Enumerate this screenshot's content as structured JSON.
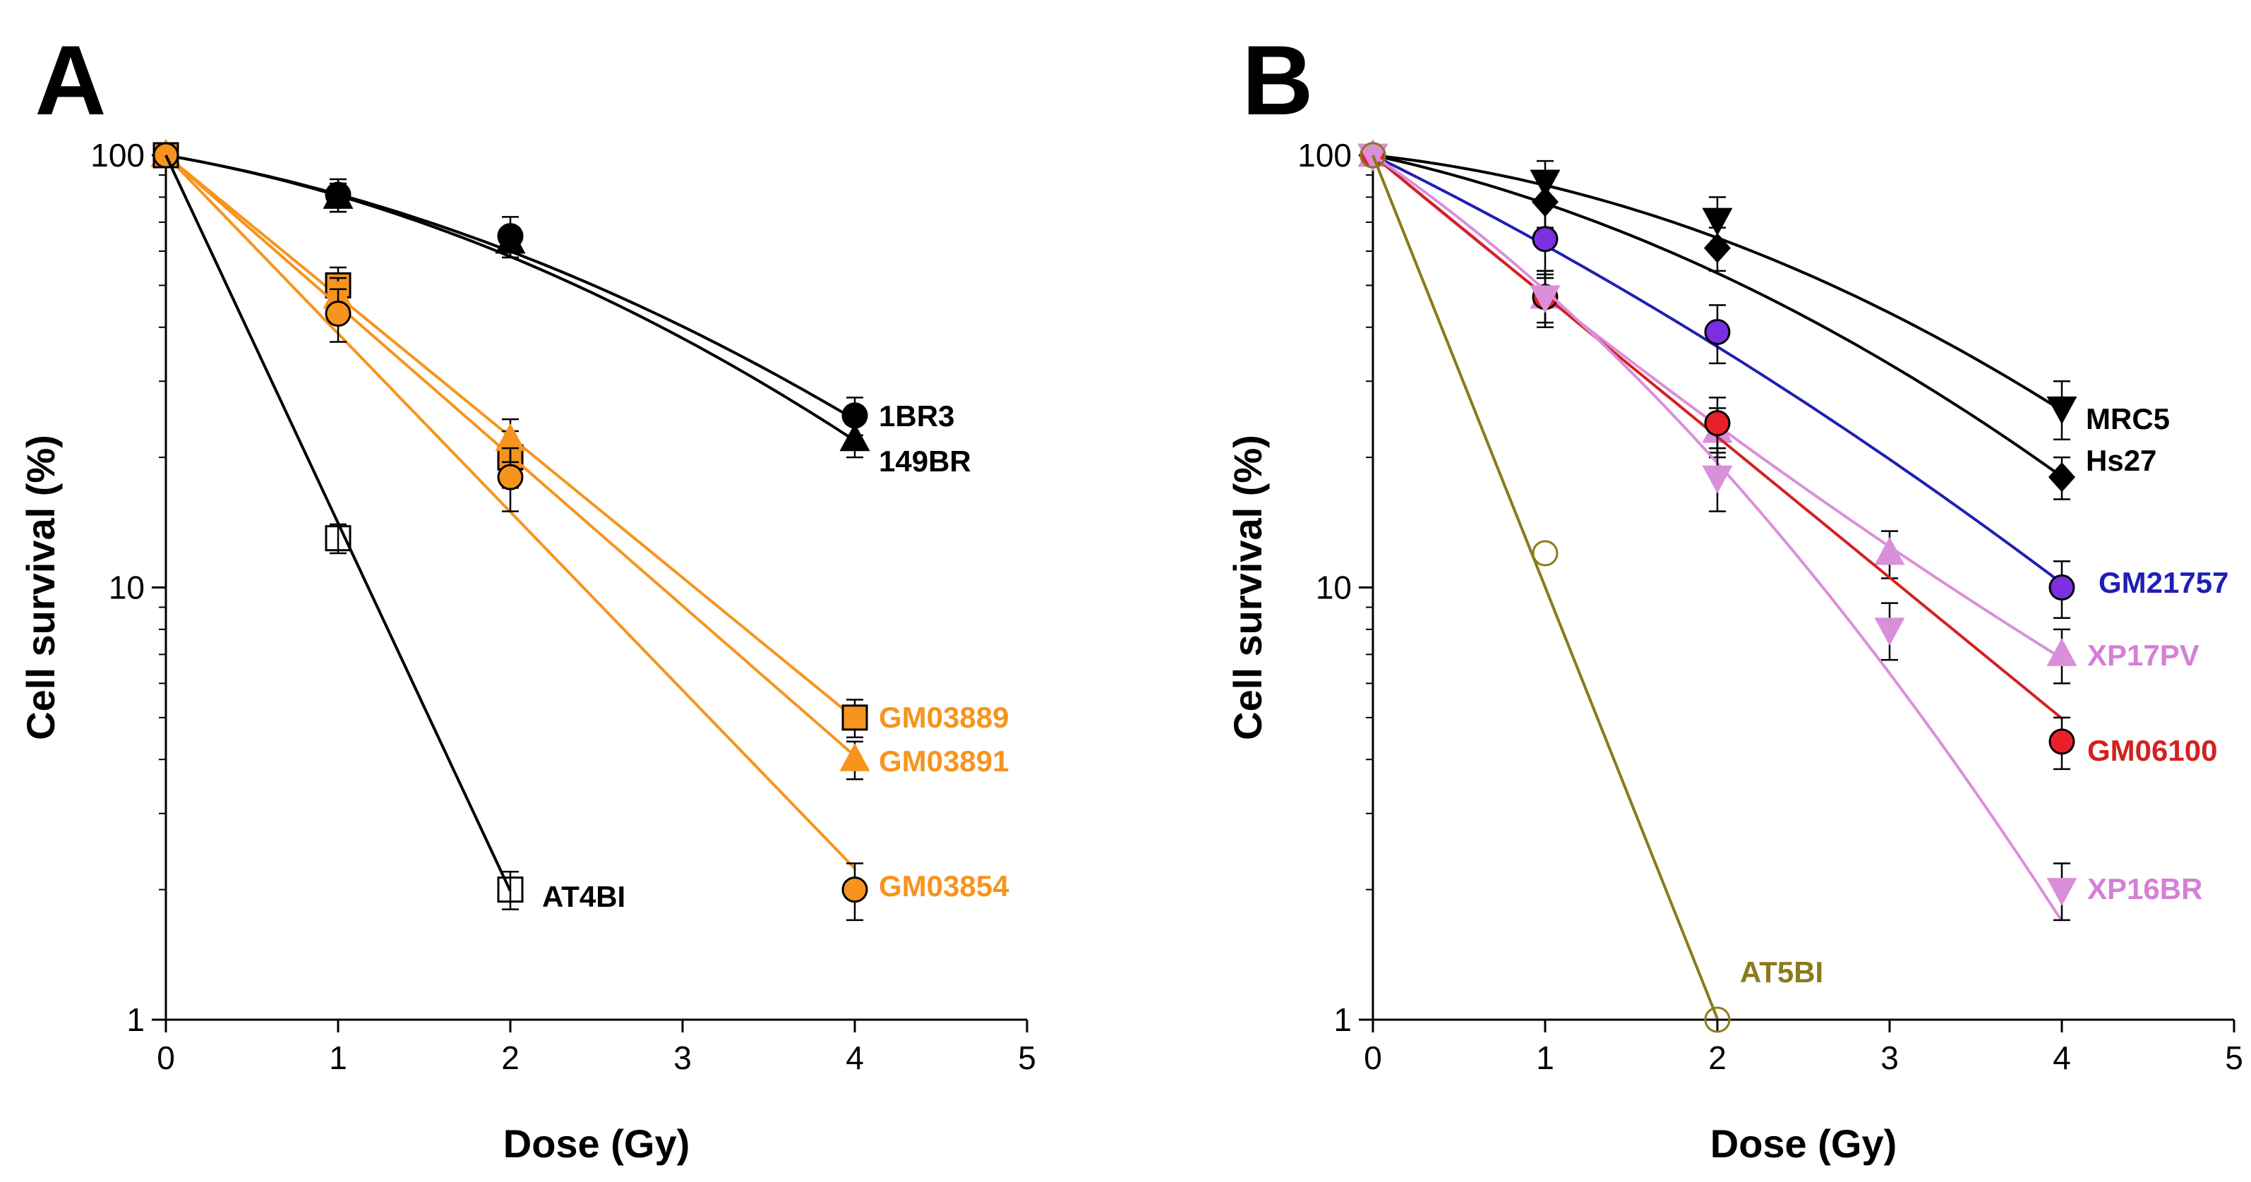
{
  "chart_data": [
    {
      "panel": "A",
      "type": "line",
      "yscale": "log",
      "xlabel": "Dose (Gy)",
      "ylabel": "Cell survival (%)",
      "xlim": [
        0,
        5
      ],
      "ylim": [
        1,
        100
      ],
      "xticks": [
        "0",
        "1",
        "2",
        "3",
        "4",
        "5"
      ],
      "yticks": [
        "1",
        "10",
        "100"
      ],
      "series": [
        {
          "name": "1BR3",
          "color": "#000000",
          "marker": "circle",
          "fill": "#000000",
          "x": [
            0,
            1,
            2,
            4
          ],
          "y": [
            100,
            81,
            65,
            25
          ],
          "err": [
            0,
            7,
            7,
            2.5
          ],
          "fit": {
            "alpha": 0.16,
            "beta": 0.048
          }
        },
        {
          "name": "149BR",
          "color": "#000000",
          "marker": "triangle",
          "fill": "#000000",
          "x": [
            0,
            1,
            2,
            4
          ],
          "y": [
            100,
            80,
            63,
            22
          ],
          "err": [
            0,
            6,
            5,
            2
          ],
          "fit": {
            "alpha": 0.16,
            "beta": 0.055
          }
        },
        {
          "name": "GM03889",
          "color": "#F7941D",
          "marker": "square",
          "fill": "#F7941D",
          "x": [
            0,
            1,
            2,
            4
          ],
          "y": [
            100,
            50,
            20,
            5
          ],
          "err": [
            0,
            5,
            3,
            0.5
          ],
          "fit": {
            "alpha": 0.75,
            "beta": 0
          }
        },
        {
          "name": "GM03891",
          "color": "#F7941D",
          "marker": "triangle",
          "fill": "#F7941D",
          "x": [
            0,
            1,
            2,
            4
          ],
          "y": [
            100,
            47,
            22,
            4
          ],
          "err": [
            0,
            5,
            2.5,
            0.4
          ],
          "fit": {
            "alpha": 0.8,
            "beta": 0
          }
        },
        {
          "name": "GM03854",
          "color": "#F7941D",
          "marker": "circle",
          "fill": "#F7941D",
          "x": [
            0,
            1,
            2,
            4
          ],
          "y": [
            100,
            43,
            18,
            2
          ],
          "err": [
            0,
            6,
            3,
            0.3
          ],
          "fit": {
            "alpha": 0.95,
            "beta": 0
          }
        },
        {
          "name": "AT4BI",
          "color": "#000000",
          "marker": "square-open",
          "fill": "none",
          "x": [
            0,
            1,
            2
          ],
          "y": [
            100,
            13,
            2
          ],
          "err": [
            0,
            1,
            0.2
          ],
          "fit": {
            "alpha": 1.96,
            "beta": 0
          }
        }
      ]
    },
    {
      "panel": "B",
      "type": "line",
      "yscale": "log",
      "xlabel": "Dose (Gy)",
      "ylabel": "Cell survival (%)",
      "xlim": [
        0,
        5
      ],
      "ylim": [
        1,
        100
      ],
      "xticks": [
        "0",
        "1",
        "2",
        "3",
        "4",
        "5"
      ],
      "yticks": [
        "1",
        "10",
        "100"
      ],
      "series": [
        {
          "name": "MRC5",
          "color": "#000000",
          "marker": "triangle-down",
          "fill": "#000000",
          "x": [
            0,
            1,
            2,
            4
          ],
          "y": [
            100,
            87,
            71,
            26
          ],
          "err": [
            0,
            10,
            9,
            4
          ],
          "fit": {
            "alpha": 0.1,
            "beta": 0.06
          }
        },
        {
          "name": "Hs27",
          "color": "#000000",
          "marker": "diamond",
          "fill": "#000000",
          "x": [
            0,
            1,
            2,
            4
          ],
          "y": [
            100,
            78,
            61,
            18
          ],
          "err": [
            0,
            10,
            7,
            2
          ],
          "fit": {
            "alpha": 0.2,
            "beta": 0.057
          }
        },
        {
          "name": "GM21757",
          "color": "#1F1FB4",
          "marker": "circle",
          "fill": "#7B2FE0",
          "x": [
            0,
            1,
            2,
            4
          ],
          "y": [
            100,
            64,
            39,
            10
          ],
          "err": [
            0,
            12,
            6,
            1.5
          ],
          "fit": {
            "alpha": 0.45,
            "beta": 0.03
          }
        },
        {
          "name": "XP17PV",
          "color": "#DA8FDA",
          "marker": "triangle",
          "fill": "#DA8FDA",
          "x": [
            0,
            1,
            2,
            3,
            4
          ],
          "y": [
            100,
            47,
            23,
            12,
            7
          ],
          "err": [
            0,
            7,
            3,
            1.5,
            1
          ],
          "fit": {
            "alpha": 0.77,
            "beta": -0.025
          }
        },
        {
          "name": "GM06100",
          "color": "#D42020",
          "marker": "circle",
          "fill": "#E8202A",
          "x": [
            0,
            1,
            2,
            4
          ],
          "y": [
            100,
            47,
            24,
            4.4
          ],
          "err": [
            0,
            6,
            3.5,
            0.6
          ],
          "fit": {
            "alpha": 0.75,
            "beta": 0
          }
        },
        {
          "name": "XP16BR",
          "color": "#DA8FDA",
          "marker": "triangle-down",
          "fill": "#DA8FDA",
          "x": [
            0,
            1,
            2,
            3,
            4
          ],
          "y": [
            100,
            47,
            18,
            8,
            2
          ],
          "err": [
            0,
            7,
            3,
            1.2,
            0.3
          ],
          "fit": {
            "alpha": 0.62,
            "beta": 0.1
          }
        },
        {
          "name": "AT5BI",
          "color": "#8B7A1A",
          "marker": "circle-open",
          "fill": "none",
          "x": [
            0,
            1,
            2
          ],
          "y": [
            100,
            12,
            1
          ],
          "err": [
            0,
            0,
            0
          ],
          "fit": {
            "alpha": 2.3,
            "beta": 0
          }
        }
      ]
    }
  ]
}
